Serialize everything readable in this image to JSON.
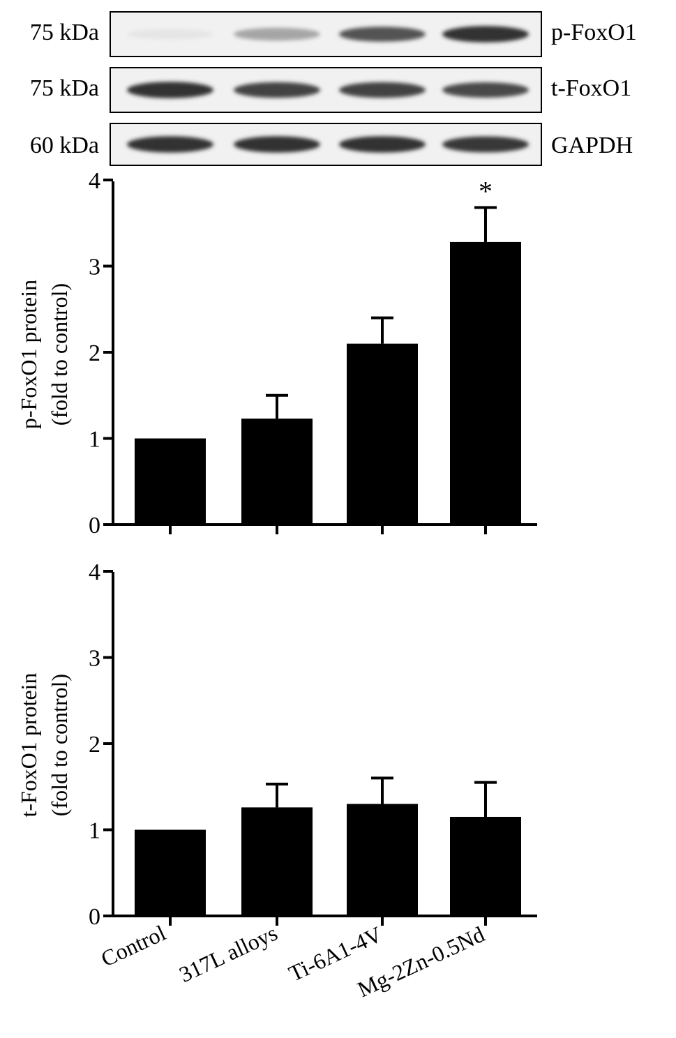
{
  "figure": {
    "western_blot": {
      "rows": [
        {
          "marker": "75 kDa",
          "protein": "p-FoxO1",
          "band_intensity": [
            0.05,
            0.45,
            0.75,
            0.95
          ]
        },
        {
          "marker": "75 kDa",
          "protein": "t-FoxO1",
          "band_intensity": [
            0.95,
            0.85,
            0.85,
            0.8
          ]
        },
        {
          "marker": "60 kDa",
          "protein": "GAPDH",
          "band_intensity": [
            0.95,
            0.95,
            0.95,
            0.9
          ]
        }
      ]
    }
  },
  "chart_data": [
    {
      "type": "bar",
      "categories": [
        "Control",
        "317L alloys",
        "Ti-6A1-4V",
        "Mg-2Zn-0.5Nd"
      ],
      "values": [
        1.0,
        1.23,
        2.1,
        3.28
      ],
      "errors": [
        0.0,
        0.27,
        0.3,
        0.4
      ],
      "significance": [
        "",
        "",
        "",
        "*"
      ],
      "ylabel_line1": "p-FoxO1 protein",
      "ylabel_line2": "(fold to control)",
      "ylim": [
        0,
        4
      ],
      "yticks": [
        "0",
        "1",
        "2",
        "3",
        "4"
      ],
      "bar_color": "#000000",
      "grid": false
    },
    {
      "type": "bar",
      "categories": [
        "Control",
        "317L alloys",
        "Ti-6A1-4V",
        "Mg-2Zn-0.5Nd"
      ],
      "values": [
        1.0,
        1.26,
        1.3,
        1.15
      ],
      "errors": [
        0.0,
        0.27,
        0.3,
        0.4
      ],
      "significance": [
        "",
        "",
        "",
        ""
      ],
      "ylabel_line1": "t-FoxO1 protein",
      "ylabel_line2": "(fold to control)",
      "ylim": [
        0,
        4
      ],
      "yticks": [
        "0",
        "1",
        "2",
        "3",
        "4"
      ],
      "bar_color": "#000000",
      "grid": false
    }
  ]
}
